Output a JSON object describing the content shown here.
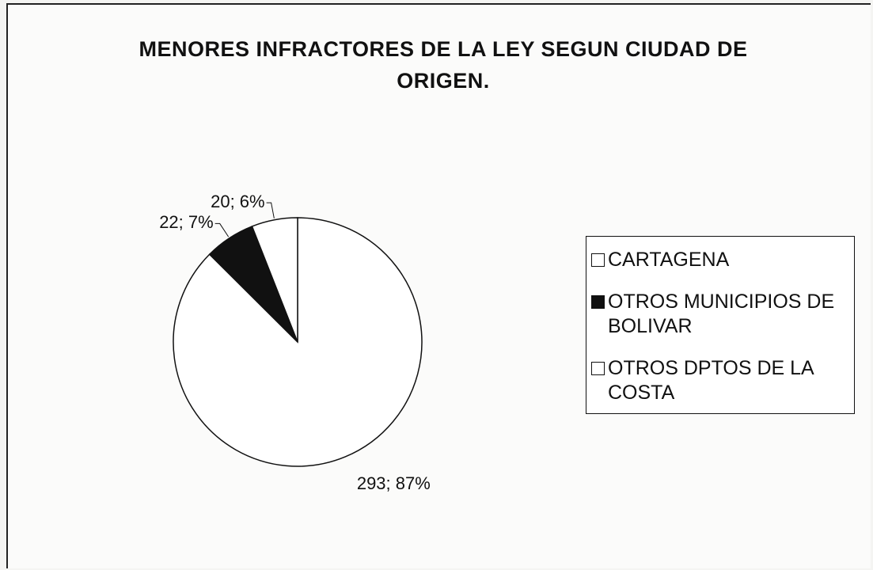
{
  "chart_data": {
    "type": "pie",
    "title": "MENORES INFRACTORES DE LA LEY SEGUN CIUDAD DE ORIGEN.",
    "categories": [
      "CARTAGENA",
      "OTROS MUNICIPIOS DE BOLIVAR",
      "OTROS DPTOS DE LA COSTA"
    ],
    "values": [
      293,
      22,
      20
    ],
    "value_labels": [
      "293; 87%",
      "22; 7%",
      "20; 6%"
    ],
    "colors": [
      "#ffffff",
      "#111111",
      "#ffffff"
    ],
    "legend": "right"
  }
}
